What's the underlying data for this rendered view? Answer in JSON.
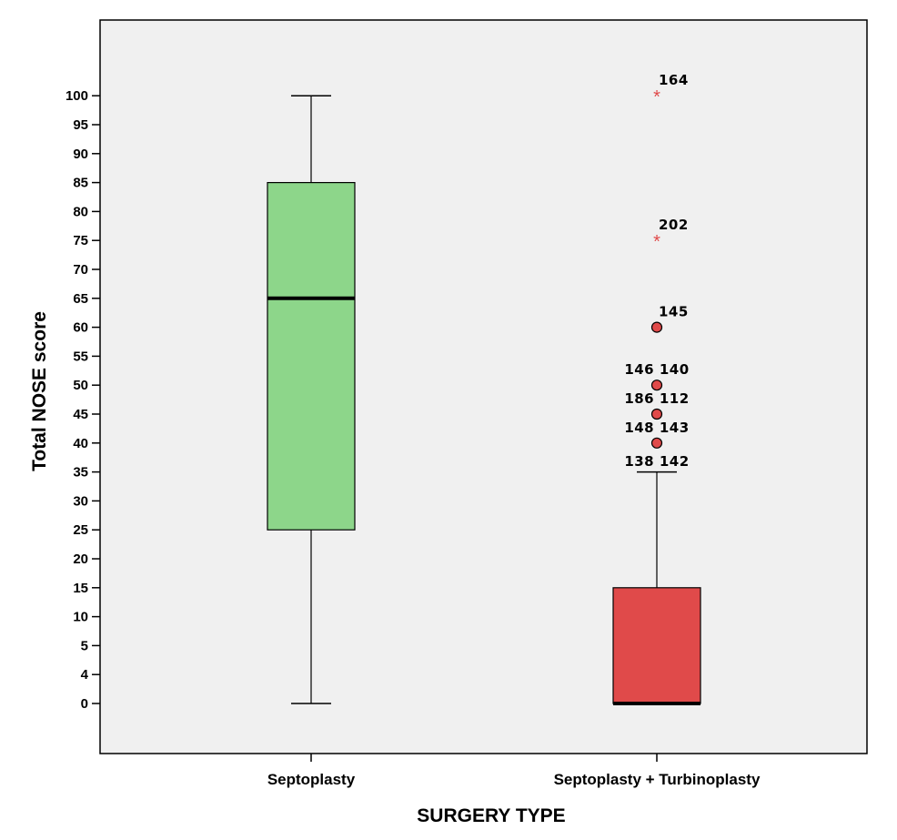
{
  "chart_data": {
    "type": "boxplot",
    "title": "",
    "xlabel": "SURGERY TYPE",
    "ylabel": "Total NOSE score",
    "y_tick_labels": [
      "0",
      "4",
      "5",
      "10",
      "15",
      "20",
      "25",
      "30",
      "35",
      "40",
      "45",
      "50",
      "55",
      "60",
      "65",
      "70",
      "75",
      "80",
      "85",
      "90",
      "95",
      "100"
    ],
    "categories": [
      "Septoplasty",
      "Septoplasty + Turbinoplasty"
    ],
    "boxes": [
      {
        "category": "Septoplasty",
        "min": 0,
        "q1": 25,
        "median": 65,
        "q3": 85,
        "max": 100,
        "color": "#8dd68a",
        "outliers": []
      },
      {
        "category": "Septoplasty + Turbinoplasty",
        "min": 0,
        "q1": 0,
        "median": 0,
        "q3": 15,
        "max": 35,
        "color": "#e04a4a",
        "outliers": [
          {
            "value": 100,
            "kind": "extreme",
            "labels_above": "164"
          },
          {
            "value": 75,
            "kind": "extreme",
            "labels_above": "202"
          },
          {
            "value": 60,
            "kind": "outlier",
            "labels_above": "145"
          },
          {
            "value": 50,
            "kind": "outlier",
            "labels_above": "146  140"
          },
          {
            "value": 45,
            "kind": "outlier",
            "labels_above": "186  112"
          },
          {
            "value": 40,
            "kind": "outlier",
            "labels_above": "148  143",
            "labels_below": "138  142"
          }
        ]
      }
    ],
    "grid": false,
    "background": "#f0f0f0"
  }
}
